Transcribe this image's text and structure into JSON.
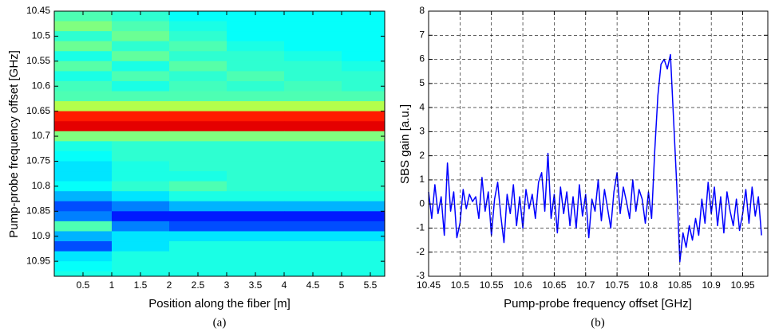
{
  "chart_data": [
    {
      "type": "heatmap",
      "xlabel": "Position along the fiber  [m]",
      "ylabel": "Pump-probe frequency offset  [GHz]",
      "caption": "(a)",
      "xlim": [
        0,
        5.75
      ],
      "ylim": [
        10.45,
        10.98
      ],
      "yreverse": true,
      "colormap": "jet",
      "xticks": [
        0.5,
        1,
        1.5,
        2,
        2.5,
        3,
        3.5,
        4,
        4.5,
        5,
        5.5
      ],
      "yticks": [
        10.45,
        10.5,
        10.55,
        10.6,
        10.65,
        10.7,
        10.75,
        10.8,
        10.85,
        10.9,
        10.95
      ],
      "xbins": [
        0,
        1,
        2,
        3,
        4,
        5,
        5.75
      ],
      "ybins": [
        10.45,
        10.47,
        10.49,
        10.51,
        10.53,
        10.55,
        10.57,
        10.59,
        10.61,
        10.63,
        10.65,
        10.67,
        10.69,
        10.71,
        10.73,
        10.75,
        10.77,
        10.79,
        10.81,
        10.83,
        10.85,
        10.87,
        10.89,
        10.91,
        10.93,
        10.95,
        10.97,
        10.98
      ],
      "z": [
        [
          0.45,
          0.42,
          0.38,
          0.38,
          0.38,
          0.38
        ],
        [
          0.5,
          0.45,
          0.4,
          0.38,
          0.38,
          0.38
        ],
        [
          0.42,
          0.48,
          0.42,
          0.38,
          0.38,
          0.38
        ],
        [
          0.48,
          0.42,
          0.45,
          0.4,
          0.38,
          0.38
        ],
        [
          0.4,
          0.47,
          0.42,
          0.42,
          0.4,
          0.38
        ],
        [
          0.46,
          0.4,
          0.46,
          0.42,
          0.42,
          0.4
        ],
        [
          0.4,
          0.45,
          0.42,
          0.45,
          0.42,
          0.42
        ],
        [
          0.44,
          0.4,
          0.44,
          0.42,
          0.44,
          0.42
        ],
        [
          0.45,
          0.45,
          0.45,
          0.45,
          0.45,
          0.45
        ],
        [
          0.55,
          0.55,
          0.55,
          0.55,
          0.55,
          0.55
        ],
        [
          0.85,
          0.85,
          0.85,
          0.85,
          0.85,
          0.85
        ],
        [
          0.9,
          0.9,
          0.9,
          0.9,
          0.9,
          0.9
        ],
        [
          0.5,
          0.5,
          0.5,
          0.5,
          0.5,
          0.5
        ],
        [
          0.4,
          0.42,
          0.42,
          0.42,
          0.42,
          0.42
        ],
        [
          0.38,
          0.42,
          0.42,
          0.42,
          0.42,
          0.42
        ],
        [
          0.35,
          0.4,
          0.42,
          0.42,
          0.42,
          0.42
        ],
        [
          0.35,
          0.4,
          0.4,
          0.42,
          0.42,
          0.42
        ],
        [
          0.38,
          0.42,
          0.45,
          0.42,
          0.42,
          0.42
        ],
        [
          0.3,
          0.35,
          0.4,
          0.4,
          0.4,
          0.4
        ],
        [
          0.2,
          0.25,
          0.3,
          0.3,
          0.3,
          0.3
        ],
        [
          0.25,
          0.15,
          0.15,
          0.15,
          0.15,
          0.15
        ],
        [
          0.45,
          0.25,
          0.2,
          0.2,
          0.2,
          0.2
        ],
        [
          0.3,
          0.35,
          0.35,
          0.35,
          0.35,
          0.35
        ],
        [
          0.2,
          0.35,
          0.4,
          0.4,
          0.4,
          0.4
        ],
        [
          0.35,
          0.4,
          0.4,
          0.4,
          0.4,
          0.4
        ],
        [
          0.38,
          0.4,
          0.4,
          0.4,
          0.4,
          0.4
        ],
        [
          0.4,
          0.4,
          0.4,
          0.4,
          0.4,
          0.4
        ]
      ]
    },
    {
      "type": "line",
      "xlabel": "Pump-probe frequency offset [GHz]",
      "ylabel": "SBS gain [a.u.]",
      "caption": "(b)",
      "color": "#0000ff",
      "grid": true,
      "xlim": [
        10.45,
        10.99
      ],
      "ylim": [
        -3,
        8
      ],
      "xticks": [
        10.45,
        10.5,
        10.55,
        10.6,
        10.65,
        10.7,
        10.75,
        10.8,
        10.85,
        10.9,
        10.95
      ],
      "yticks": [
        -3,
        -2,
        -1,
        0,
        1,
        2,
        3,
        4,
        5,
        6,
        7,
        8
      ],
      "x": [
        10.45,
        10.455,
        10.46,
        10.465,
        10.47,
        10.475,
        10.48,
        10.485,
        10.49,
        10.495,
        10.5,
        10.505,
        10.51,
        10.515,
        10.52,
        10.525,
        10.53,
        10.535,
        10.54,
        10.545,
        10.55,
        10.555,
        10.56,
        10.565,
        10.57,
        10.575,
        10.58,
        10.585,
        10.59,
        10.595,
        10.6,
        10.605,
        10.61,
        10.615,
        10.62,
        10.625,
        10.63,
        10.635,
        10.64,
        10.645,
        10.65,
        10.655,
        10.66,
        10.665,
        10.67,
        10.675,
        10.68,
        10.685,
        10.69,
        10.695,
        10.7,
        10.705,
        10.71,
        10.715,
        10.72,
        10.725,
        10.73,
        10.735,
        10.74,
        10.745,
        10.75,
        10.755,
        10.76,
        10.765,
        10.77,
        10.775,
        10.78,
        10.785,
        10.79,
        10.795,
        10.8,
        10.805,
        10.81,
        10.815,
        10.82,
        10.825,
        10.83,
        10.835,
        10.84,
        10.845,
        10.85,
        10.855,
        10.86,
        10.865,
        10.87,
        10.875,
        10.88,
        10.885,
        10.89,
        10.895,
        10.9,
        10.905,
        10.91,
        10.915,
        10.92,
        10.925,
        10.93,
        10.935,
        10.94,
        10.945,
        10.95,
        10.955,
        10.96,
        10.965,
        10.97,
        10.975,
        10.98
      ],
      "values": [
        0.5,
        -0.6,
        0.8,
        -0.4,
        0.3,
        -1.3,
        1.7,
        -0.3,
        0.5,
        -1.4,
        -0.8,
        0.6,
        -0.2,
        0.4,
        0.1,
        0.3,
        -0.6,
        1.1,
        -0.3,
        0.5,
        -1.3,
        0.2,
        0.9,
        -0.5,
        -1.6,
        0.4,
        -0.4,
        0.8,
        -0.9,
        0.3,
        -1.0,
        0.6,
        -0.2,
        0.4,
        -0.6,
        0.9,
        1.3,
        -0.3,
        2.1,
        -0.6,
        0.4,
        -1.2,
        0.7,
        -0.4,
        0.5,
        -0.9,
        0.3,
        -1.0,
        0.8,
        -0.5,
        0.4,
        -1.4,
        0.2,
        -0.3,
        1.0,
        -0.7,
        0.6,
        -0.2,
        -1.0,
        0.5,
        1.3,
        -0.4,
        0.7,
        0.1,
        -0.6,
        1.0,
        -0.3,
        0.6,
        0.2,
        -0.8,
        0.5,
        -0.6,
        2.2,
        4.5,
        5.8,
        6.0,
        5.6,
        6.2,
        3.5,
        0.8,
        -2.4,
        -1.2,
        -1.8,
        -0.9,
        -1.5,
        -0.6,
        -1.3,
        0.2,
        -0.8,
        0.9,
        -0.4,
        0.7,
        -0.9,
        0.3,
        -1.2,
        0.5,
        -0.3,
        -0.9,
        0.2,
        -1.1,
        -0.4,
        0.6,
        -0.8,
        0.7,
        -0.5,
        0.3,
        -1.3
      ]
    }
  ]
}
